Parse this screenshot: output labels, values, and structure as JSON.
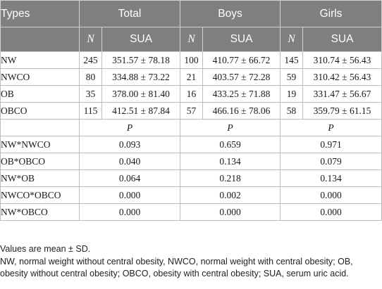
{
  "header": {
    "types": "Types",
    "total": "Total",
    "boys": "Boys",
    "girls": "Girls",
    "n": "N",
    "sua": "SUA"
  },
  "rows": [
    {
      "type": "NW",
      "total_n": "245",
      "total_sua": "351.57 ± 78.18",
      "boys_n": "100",
      "boys_sua": "410.77 ± 66.72",
      "girls_n": "145",
      "girls_sua": "310.74 ± 56.43"
    },
    {
      "type": "NWCO",
      "total_n": "80",
      "total_sua": "334.88 ± 73.22",
      "boys_n": "21",
      "boys_sua": "403.57 ± 72.28",
      "girls_n": "59",
      "girls_sua": "310.42 ± 56.43"
    },
    {
      "type": "OB",
      "total_n": "35",
      "total_sua": "378.00 ± 81.40",
      "boys_n": "16",
      "boys_sua": "433.25 ± 71.88",
      "girls_n": "19",
      "girls_sua": "331.47 ± 56.67"
    },
    {
      "type": "OBCO",
      "total_n": "115",
      "total_sua": "412.51 ± 87.84",
      "boys_n": "57",
      "boys_sua": "466.16 ± 78.06",
      "girls_n": "58",
      "girls_sua": "359.79 ± 61.15"
    }
  ],
  "p_header": "P",
  "comparisons": [
    {
      "label": "NW*NWCO",
      "total": "0.093",
      "boys": "0.659",
      "girls": "0.971"
    },
    {
      "label": "OB*OBCO",
      "total": "0.040",
      "boys": "0.134",
      "girls": "0.079"
    },
    {
      "label": "NW*OB",
      "total": "0.064",
      "boys": "0.218",
      "girls": "0.134"
    },
    {
      "label": "NWCO*OBCO",
      "total": "0.000",
      "boys": "0.002",
      "girls": "0.000"
    },
    {
      "label": "NW*OBCO",
      "total": "0.000",
      "boys": "0.000",
      "girls": "0.000"
    }
  ],
  "notes": {
    "line1": "Values are mean ± SD.",
    "line2": "NW, normal weight without central obesity, NWCO, normal weight with central obesity; OB, obesity without central obesity; OBCO, obesity with central obesity; SUA, serum uric acid."
  }
}
